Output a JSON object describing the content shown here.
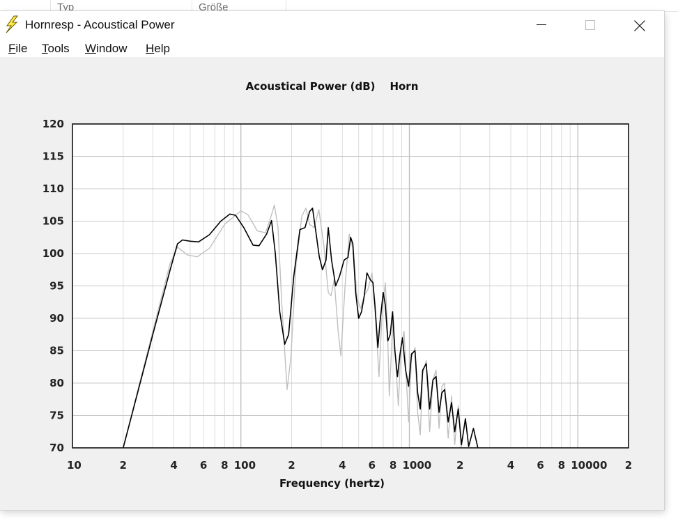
{
  "background_window": {
    "columns": [
      {
        "label": "Typ"
      },
      {
        "label": "Größe"
      }
    ]
  },
  "window": {
    "title": "Hornresp - Acoustical Power",
    "icon": "lightning-bolt-icon",
    "controls": {
      "minimize_icon": "minimize-icon",
      "maximize_icon": "maximize-icon",
      "close_icon": "close-icon"
    }
  },
  "menu": [
    {
      "accel": "F",
      "rest": "ile"
    },
    {
      "accel": "T",
      "rest": "ools"
    },
    {
      "accel": "W",
      "rest": "indow"
    },
    {
      "accel": "H",
      "rest": "elp"
    }
  ],
  "chart_data": {
    "type": "line",
    "title": "Acoustical Power (dB)",
    "subtitle": "Horn",
    "xlabel": "Frequency (hertz)",
    "ylabel": "",
    "xscale": "log",
    "xlim": [
      10,
      20000
    ],
    "ylim": [
      70,
      120
    ],
    "y_ticks": [
      70,
      75,
      80,
      85,
      90,
      95,
      100,
      105,
      110,
      115,
      120
    ],
    "x_tick_labels": [
      {
        "x": 10,
        "label": "10"
      },
      {
        "x": 20,
        "label": "2"
      },
      {
        "x": 40,
        "label": "4"
      },
      {
        "x": 60,
        "label": "6"
      },
      {
        "x": 80,
        "label": "8"
      },
      {
        "x": 100,
        "label": "100"
      },
      {
        "x": 200,
        "label": "2"
      },
      {
        "x": 400,
        "label": "4"
      },
      {
        "x": 600,
        "label": "6"
      },
      {
        "x": 800,
        "label": "8"
      },
      {
        "x": 1000,
        "label": "1000"
      },
      {
        "x": 2000,
        "label": "2"
      },
      {
        "x": 4000,
        "label": "4"
      },
      {
        "x": 6000,
        "label": "6"
      },
      {
        "x": 8000,
        "label": "8"
      },
      {
        "x": 10000,
        "label": "10000"
      },
      {
        "x": 20000,
        "label": "2"
      }
    ],
    "grid": true,
    "colors": {
      "primary": "#000000",
      "secondary": "#c0c0c0",
      "grid": "#c8c8c8",
      "grid_major": "#bdbdbd"
    },
    "series": [
      {
        "style": "secondary",
        "points": [
          [
            20,
            70.0
          ],
          [
            30,
            88.0
          ],
          [
            38,
            98.5
          ],
          [
            42,
            101.0
          ],
          [
            48,
            99.8
          ],
          [
            55,
            99.5
          ],
          [
            65,
            100.8
          ],
          [
            80,
            104.5
          ],
          [
            100,
            106.6
          ],
          [
            110,
            106.0
          ],
          [
            125,
            103.5
          ],
          [
            140,
            103.2
          ],
          [
            150,
            105.5
          ],
          [
            158,
            107.5
          ],
          [
            166,
            104.0
          ],
          [
            175,
            92.0
          ],
          [
            188,
            79.0
          ],
          [
            198,
            84.0
          ],
          [
            212,
            98.0
          ],
          [
            230,
            105.8
          ],
          [
            243,
            107.0
          ],
          [
            256,
            104.5
          ],
          [
            272,
            104.0
          ],
          [
            290,
            106.8
          ],
          [
            310,
            101.5
          ],
          [
            330,
            94.0
          ],
          [
            343,
            93.5
          ],
          [
            358,
            96.0
          ],
          [
            378,
            88.0
          ],
          [
            392,
            84.2
          ],
          [
            415,
            95.0
          ],
          [
            440,
            103.0
          ],
          [
            465,
            100.5
          ],
          [
            490,
            93.0
          ],
          [
            515,
            91.5
          ],
          [
            540,
            93.5
          ],
          [
            568,
            94.5
          ],
          [
            600,
            97.0
          ],
          [
            630,
            90.0
          ],
          [
            660,
            81.0
          ],
          [
            690,
            91.0
          ],
          [
            720,
            95.5
          ],
          [
            740,
            89.0
          ],
          [
            760,
            78.0
          ],
          [
            780,
            84.0
          ],
          [
            800,
            90.5
          ],
          [
            830,
            83.0
          ],
          [
            860,
            76.5
          ],
          [
            890,
            85.5
          ],
          [
            930,
            88.0
          ],
          [
            960,
            80.5
          ],
          [
            990,
            74.0
          ],
          [
            1030,
            84.0
          ],
          [
            1080,
            85.5
          ],
          [
            1120,
            75.5
          ],
          [
            1160,
            72.0
          ],
          [
            1200,
            81.5
          ],
          [
            1260,
            83.5
          ],
          [
            1320,
            72.5
          ],
          [
            1380,
            80.5
          ],
          [
            1440,
            82.0
          ],
          [
            1500,
            73.0
          ],
          [
            1560,
            79.5
          ],
          [
            1620,
            80.0
          ],
          [
            1700,
            71.5
          ],
          [
            1780,
            78.0
          ],
          [
            1860,
            70.5
          ],
          [
            1950,
            76.5
          ],
          [
            2040,
            70.0
          ]
        ]
      },
      {
        "style": "primary",
        "points": [
          [
            20,
            70.0
          ],
          [
            30,
            87.5
          ],
          [
            38,
            97.5
          ],
          [
            42,
            101.5
          ],
          [
            45,
            102.1
          ],
          [
            50,
            101.9
          ],
          [
            56,
            101.8
          ],
          [
            65,
            102.9
          ],
          [
            76,
            105.0
          ],
          [
            86,
            106.1
          ],
          [
            93,
            105.9
          ],
          [
            104,
            104.0
          ],
          [
            118,
            101.3
          ],
          [
            128,
            101.2
          ],
          [
            142,
            103.0
          ],
          [
            152,
            105.1
          ],
          [
            160,
            100.0
          ],
          [
            170,
            91.0
          ],
          [
            182,
            86.0
          ],
          [
            192,
            87.5
          ],
          [
            206,
            96.5
          ],
          [
            224,
            103.7
          ],
          [
            240,
            104.0
          ],
          [
            256,
            106.5
          ],
          [
            266,
            107.0
          ],
          [
            278,
            103.5
          ],
          [
            292,
            99.5
          ],
          [
            305,
            97.5
          ],
          [
            320,
            99.0
          ],
          [
            330,
            104.0
          ],
          [
            345,
            99.0
          ],
          [
            365,
            95.0
          ],
          [
            385,
            96.5
          ],
          [
            410,
            99.0
          ],
          [
            432,
            99.4
          ],
          [
            448,
            102.5
          ],
          [
            462,
            101.5
          ],
          [
            480,
            94.0
          ],
          [
            500,
            90.0
          ],
          [
            520,
            91.0
          ],
          [
            540,
            93.5
          ],
          [
            560,
            97.0
          ],
          [
            585,
            96.0
          ],
          [
            608,
            95.5
          ],
          [
            625,
            92.0
          ],
          [
            650,
            85.5
          ],
          [
            670,
            89.5
          ],
          [
            700,
            94.0
          ],
          [
            720,
            92.0
          ],
          [
            745,
            86.5
          ],
          [
            770,
            87.5
          ],
          [
            795,
            91.0
          ],
          [
            820,
            85.0
          ],
          [
            850,
            81.0
          ],
          [
            880,
            84.5
          ],
          [
            910,
            87.0
          ],
          [
            950,
            82.0
          ],
          [
            990,
            79.5
          ],
          [
            1030,
            84.5
          ],
          [
            1080,
            85.0
          ],
          [
            1120,
            78.5
          ],
          [
            1160,
            76.0
          ],
          [
            1200,
            82.0
          ],
          [
            1260,
            83.0
          ],
          [
            1320,
            76.0
          ],
          [
            1380,
            80.5
          ],
          [
            1440,
            81.0
          ],
          [
            1500,
            75.5
          ],
          [
            1560,
            78.5
          ],
          [
            1620,
            79.0
          ],
          [
            1700,
            74.0
          ],
          [
            1780,
            77.0
          ],
          [
            1860,
            72.5
          ],
          [
            1950,
            76.0
          ],
          [
            2040,
            70.5
          ],
          [
            2150,
            74.5
          ],
          [
            2250,
            70.2
          ],
          [
            2400,
            73.0
          ],
          [
            2550,
            70.0
          ]
        ]
      }
    ]
  }
}
